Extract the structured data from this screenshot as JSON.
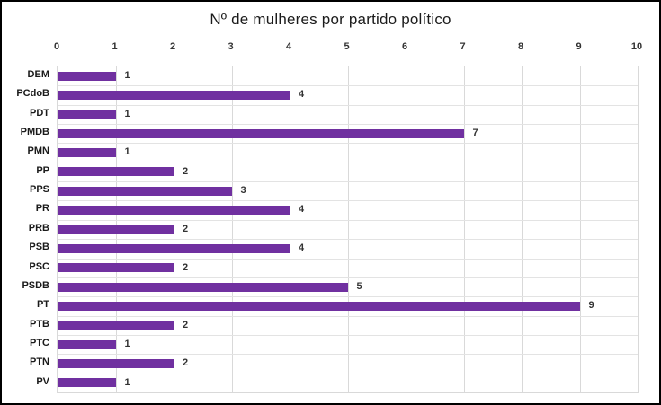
{
  "chart_data": {
    "type": "bar",
    "orientation": "horizontal",
    "title": "Nº de mulheres por partido político",
    "categories": [
      "DEM",
      "PCdoB",
      "PDT",
      "PMDB",
      "PMN",
      "PP",
      "PPS",
      "PR",
      "PRB",
      "PSB",
      "PSC",
      "PSDB",
      "PT",
      "PTB",
      "PTC",
      "PTN",
      "PV"
    ],
    "values": [
      1,
      4,
      1,
      7,
      1,
      2,
      3,
      4,
      2,
      4,
      2,
      5,
      9,
      2,
      1,
      2,
      1
    ],
    "xlabel": "",
    "ylabel": "",
    "xlim": [
      0,
      10
    ],
    "x_ticks": [
      0,
      1,
      2,
      3,
      4,
      5,
      6,
      7,
      8,
      9,
      10
    ],
    "axis_position": "top",
    "grid": true,
    "data_labels": true,
    "legend": false,
    "bar_color": "#7030A0",
    "gridline_color": "#D9D9D9",
    "text_color": "#333333",
    "frame_border_color": "#000000"
  }
}
